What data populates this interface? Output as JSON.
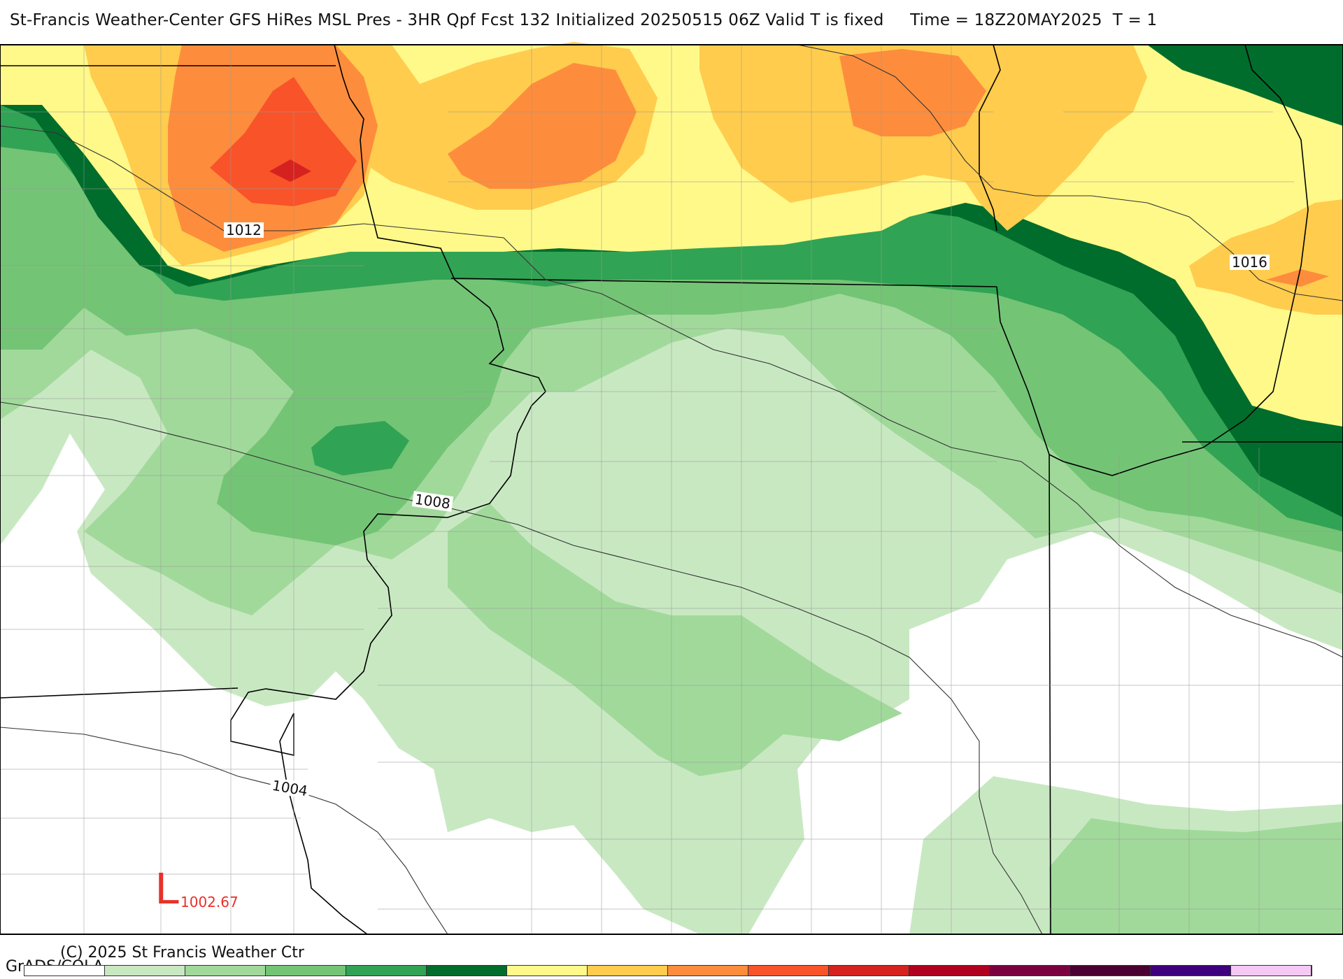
{
  "title": "St-Francis Weather-Center GFS HiRes MSL Pres - 3HR Qpf Fcst 132 Initialized 20250515 06Z Valid T is fixed     Time = 18Z20MAY2025  T = 1",
  "isobars": [
    {
      "value": "1012"
    },
    {
      "value": "1008"
    },
    {
      "value": "1016"
    },
    {
      "value": "1004"
    }
  ],
  "low_pressure": {
    "symbol": "L",
    "value": "1002.67",
    "color": "#e8312a"
  },
  "credit": "(C) 2025 St Francis Weather Ctr",
  "grads": "GrADS/COLA",
  "colorbar": {
    "colors": [
      "#ffffff",
      "#c8e8c2",
      "#a1d99b",
      "#74c476",
      "#31a354",
      "#006d2c",
      "#fff98a",
      "#ffcc4d",
      "#fd8d3c",
      "#f9532a",
      "#d6221f",
      "#b00020",
      "#7a0040",
      "#4a0030",
      "#3f007d",
      "#f5c8f5"
    ]
  },
  "palette": {
    "lightgreen": "#c8e8c2",
    "green2": "#a1d99b",
    "green3": "#74c476",
    "green4": "#31a354",
    "darkgreen": "#006d2c",
    "yellow": "#fff98a",
    "lightorange": "#ffcc4d",
    "orange": "#fd8d3c",
    "redorange": "#f9532a",
    "red": "#d6221f"
  }
}
